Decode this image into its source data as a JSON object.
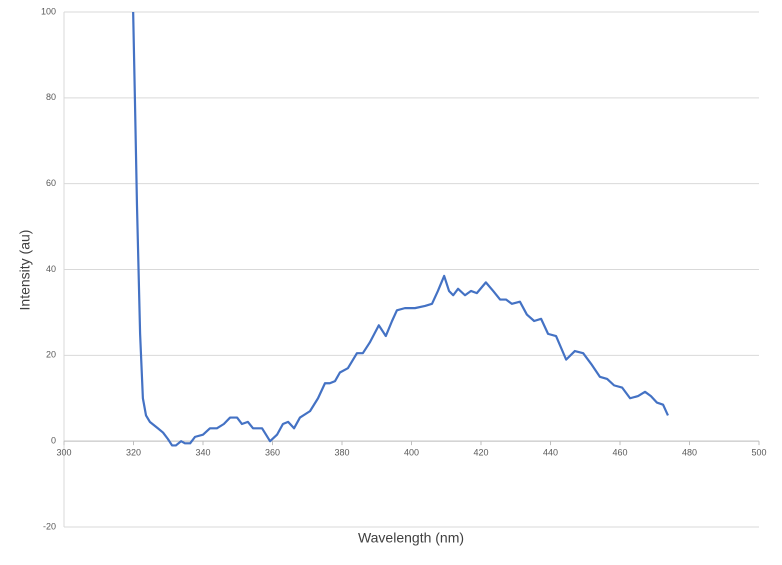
{
  "chart_data": {
    "type": "line",
    "xlabel": "Wavelength (nm)",
    "ylabel": "Intensity (au)",
    "xlim": [
      300,
      500
    ],
    "xticks": [
      300,
      320,
      340,
      360,
      380,
      400,
      420,
      440,
      460,
      480,
      500
    ],
    "ylim": [
      -20,
      100
    ],
    "yticks": [
      -20,
      0,
      20,
      40,
      60,
      80,
      100
    ],
    "grid": true,
    "series": [
      {
        "name": "Intensity",
        "color": "#4472c4",
        "x": [
          319.9,
          320.4,
          321.0,
          321.9,
          322.7,
          323.6,
          324.7,
          327.0,
          328.5,
          329.9,
          331.1,
          332.2,
          333.7,
          334.8,
          336.3,
          337.7,
          340.0,
          342.0,
          344.0,
          346.0,
          347.8,
          349.8,
          351.2,
          352.9,
          354.4,
          357.0,
          359.3,
          361.3,
          363.0,
          364.5,
          366.2,
          367.9,
          370.8,
          373.1,
          375.1,
          376.5,
          378.0,
          379.4,
          381.7,
          384.3,
          386.0,
          388.0,
          390.6,
          392.6,
          394.4,
          395.8,
          398.1,
          401.0,
          403.9,
          405.9,
          407.6,
          409.4,
          410.8,
          412.0,
          413.4,
          415.4,
          417.1,
          418.8,
          421.4,
          423.5,
          425.5,
          427.2,
          428.9,
          431.2,
          433.2,
          435.3,
          437.3,
          439.3,
          441.6,
          444.5,
          447.0,
          449.4,
          451.7,
          454.2,
          456.3,
          458.3,
          460.6,
          462.9,
          465.2,
          467.2,
          468.9,
          470.6,
          472.4,
          473.8
        ],
        "values": [
          100,
          80,
          55,
          25,
          10,
          6,
          4.5,
          3,
          2,
          0.5,
          -1,
          -1,
          0,
          -0.5,
          -0.5,
          1,
          1.5,
          3,
          3,
          4,
          5.5,
          5.5,
          4,
          4.5,
          3,
          3,
          0,
          1.5,
          4,
          4.5,
          3,
          5.5,
          7,
          10,
          13.5,
          13.5,
          14,
          16,
          17,
          20.5,
          20.5,
          23,
          27,
          24.5,
          28,
          30.5,
          31,
          31,
          31.5,
          32,
          35,
          38.5,
          35,
          34,
          35.5,
          34,
          35,
          34.5,
          37,
          35,
          33,
          33,
          32,
          32.5,
          29.5,
          28,
          28.5,
          25,
          24.5,
          19,
          21,
          20.5,
          18,
          15,
          14.5,
          13,
          12.5,
          10,
          10.5,
          11.5,
          10.5,
          9,
          8.5,
          6
        ]
      }
    ]
  }
}
